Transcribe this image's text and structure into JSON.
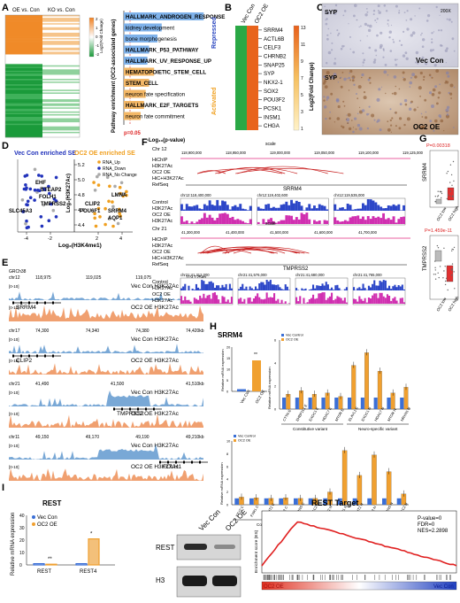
{
  "panels": {
    "a": "A",
    "b": "B",
    "c": "C",
    "d": "D",
    "e": "E",
    "f": "F",
    "g": "G",
    "h": "H",
    "i": "I"
  },
  "panel_a": {
    "col_labels": [
      "OE vs. Con",
      "KO vs. Con"
    ],
    "colorbar_label": "Log2(Fold Change)",
    "colorbar_ticks": [
      "2",
      "1",
      "0",
      "-1",
      "-2"
    ],
    "yaxis_label": "Pathway enrichment (OC2-associated genes)",
    "xlabel": "-Log₁₀(p-value)",
    "pvalue_note": "p=0.05",
    "group_repressed": "Repressed",
    "group_activated": "Activated",
    "pathways": [
      {
        "name": "HALLMARK_ANDROGEN_RESPONSE",
        "group": "repressed",
        "value": 0.95
      },
      {
        "name": "kidney development",
        "group": "repressed",
        "value": 0.45
      },
      {
        "name": "bone morphogenesis",
        "group": "repressed",
        "value": 0.4
      },
      {
        "name": "HALLMARK_P53_PATHWAY",
        "group": "repressed",
        "value": 0.3
      },
      {
        "name": "HALLMARK_UV_RESPONSE_UP",
        "group": "repressed",
        "value": 0.28
      },
      {
        "name": "HEMATOPOIETIC_STEM_CELL",
        "group": "activated",
        "value": 0.36
      },
      {
        "name": "STEM_CELL",
        "group": "activated",
        "value": 0.3
      },
      {
        "name": "neuron fate specification",
        "group": "activated",
        "value": 0.26
      },
      {
        "name": "HALLMARK_E2F_TARGETS",
        "group": "activated",
        "value": 0.24
      },
      {
        "name": "neuron fate commitment",
        "group": "activated",
        "value": 0.2
      }
    ]
  },
  "panel_b": {
    "col_labels": [
      "Vec Con",
      "OC2 OE"
    ],
    "genes": [
      "SRRM4",
      "ACTL6B",
      "CELF3",
      "CHRNB2",
      "SNAP25",
      "SYP",
      "NKX2-1",
      "SOX2",
      "POU3F2",
      "PCSK1",
      "INSM1",
      "CHGA"
    ],
    "colorbar_label": "Log2(Fold Change)",
    "colorbar_ticks": [
      "13",
      "11",
      "9",
      "7",
      "5",
      "3",
      "1"
    ]
  },
  "panel_c": {
    "stain": "SYP",
    "magnification": "200X",
    "top_label": "Vec Con",
    "bottom_label": "OC2 OE"
  },
  "panel_d": {
    "title_left": "Vec Con enriched SE",
    "title_right": "OC2 OE enriched SE",
    "legend": [
      "RNA_Up",
      "RNA_Down",
      "RNA_No Change"
    ],
    "legend_colors": [
      "#f0a020",
      "#2233bb",
      "#aaaaaa"
    ],
    "xlabel": "Log₂(H3K4me1)",
    "ylabel": "Log₂(H3K27Ac)",
    "xticks": [
      "-4",
      "-2",
      "2",
      "4"
    ],
    "yticks": [
      "5.2",
      "5.0",
      "4.8",
      "4.6",
      "4.4"
    ],
    "labels_left": [
      "EHF",
      "STEAP2",
      "FOLH1",
      "TMPRSS2",
      "SLC45A3"
    ],
    "labels_right": [
      "LMNA",
      "CLIP2",
      "POU6F1",
      "SRRM4",
      "AQP1"
    ]
  },
  "panel_e": {
    "genome": "GRCh38",
    "tracks": [
      {
        "chr": "chr12",
        "coords": [
          "118,975",
          "119,025",
          "119,075",
          "119,125kb"
        ],
        "gene": "SRRM4",
        "rows": [
          "Vec Con H3K27Ac",
          "OC2 OE H3K27Ac"
        ],
        "scale": "[0-10]"
      },
      {
        "chr": "chr17",
        "coords": [
          "74,300",
          "74,340",
          "74,380",
          "74,420kb"
        ],
        "gene": "CLIP2",
        "rows": [
          "Vec Con H3K27Ac",
          "OC2 OE H3K27Ac"
        ],
        "scale": "[0-10]"
      },
      {
        "chr": "chr21",
        "coords": [
          "41,490",
          "41,500",
          "41,510kb"
        ],
        "gene": "TMPRSS2",
        "rows": [
          "Vec Con H3K27Ac",
          "OC2 OE H3K27Ac"
        ],
        "scale": "[0-10]"
      },
      {
        "chr": "chr11",
        "coords": [
          "49,150",
          "49,170",
          "49,190",
          "49,210kb"
        ],
        "gene": "FOLH1",
        "rows": [
          "Vec Con H3K27Ac",
          "OC2 OE H3K27Ac"
        ],
        "scale": "[0-10]"
      }
    ]
  },
  "panel_f": {
    "top": {
      "chr": "Chr 12",
      "coords": [
        "118,900,000",
        "118,950,000",
        "119,000,000",
        "119,050,000",
        "119,100,000",
        "119,125,000"
      ],
      "gene": "SRRM4",
      "zoom": [
        "chr12:118,400,000",
        "chr12:119,402,600",
        "chr12:119,535,000"
      ]
    },
    "bottom": {
      "chr": "Chr 21",
      "coords": [
        "41,300,000",
        "41,400,000",
        "41,500,000",
        "41,600,000",
        "41,700,000"
      ],
      "gene": "TMPRSS2",
      "zoom": [
        "chr21:41,312,000",
        "chr21:41,576,000",
        "chr21:41,680,000",
        "chr21:41,765,000"
      ]
    },
    "rows": [
      "HiChIP",
      "H3K27Ac",
      "OC2 OE",
      "HiC+H3K27Ac",
      "RefSeq"
    ],
    "coverage_rows": [
      "Control",
      "H3K27Ac",
      "OC2 OE",
      "H3K27Ac"
    ],
    "scale": "scale"
  },
  "panel_g": {
    "top_gene": "SRRM4",
    "top_p": "P=0.00318",
    "bottom_gene": "TMPRSS2",
    "bottom_p": "P=1.459e-11",
    "xcats": [
      "OC2 low",
      "OC2 high"
    ]
  },
  "panel_h": {
    "title": "SRRM4",
    "ylabel": "Relative mRNA expression",
    "legend": [
      "Vec Control",
      "OC2 OE"
    ],
    "bar1": {
      "cats": [
        "Vec Con",
        "OC2 OE"
      ],
      "values": [
        1.0,
        14.0
      ],
      "ylim": [
        0,
        20
      ],
      "yticks": [
        "0",
        "5",
        "10",
        "15",
        "20"
      ],
      "sig": "**"
    },
    "chart2": {
      "groups": [
        {
          "label": "Constitutive variant",
          "cats": [
            "CTTN E",
            "EHBP1L1 E",
            "EXOC1 E",
            "HDAC7 E",
            "MTOR E"
          ]
        },
        {
          "label": "Neuro-specific variant",
          "cats": [
            "ELAVL1 E",
            "EXOC1 N",
            "HDAC7 N",
            "MTOR N",
            "NRXN1 N"
          ]
        }
      ],
      "values_vec": [
        1,
        1,
        1,
        1,
        1,
        1,
        1,
        1,
        1,
        1
      ],
      "values_oe": [
        1.3,
        1.6,
        1.3,
        1.4,
        1.1,
        3.8,
        4.9,
        3.3,
        1.4,
        1.9
      ],
      "ylim": [
        0,
        6
      ],
      "yticks": [
        "0",
        "2",
        "4",
        "6"
      ]
    },
    "chart3": {
      "groups": [
        {
          "label": "Constitutive variant",
          "cats": [
            "FTY2 C",
            "FXR1 C",
            "ARNT2 C",
            "ATL2 C",
            "CARNS C",
            "ERCC2 C"
          ]
        },
        {
          "label": "Neuro-specific variant",
          "cats": [
            "FTY2 N",
            "FXR1 N",
            "ARNT2 N",
            "ATL2 N",
            "CARNS N",
            "ERCC2 N"
          ]
        }
      ],
      "values_vec": [
        1,
        1,
        1,
        1,
        1,
        1,
        1,
        1,
        1,
        1,
        1,
        1
      ],
      "values_oe": [
        1.2,
        1.1,
        1.0,
        1.1,
        1.0,
        1.0,
        2.0,
        8.5,
        4.6,
        7.8,
        5.2,
        1.7
      ],
      "ylim": [
        0,
        10
      ],
      "yticks": [
        "0",
        "2",
        "4",
        "6",
        "8",
        "10"
      ]
    }
  },
  "panel_i": {
    "title": "REST",
    "ylabel": "Relative mRNA expression",
    "legend": [
      "Vec Con",
      "OC2 OE"
    ],
    "legend_colors": [
      "#3b6fd6",
      "#f0a030"
    ],
    "cats": [
      "REST",
      "REST4"
    ],
    "values_vec": [
      1.0,
      1.0
    ],
    "values_oe": [
      0.6,
      21.0
    ],
    "ylim": [
      0,
      40
    ],
    "yticks": [
      "0",
      "10",
      "20",
      "30",
      "40"
    ],
    "sig": [
      "**",
      "*"
    ],
    "western_cols": [
      "Vec Con",
      "OC2 OE"
    ],
    "western_rows": [
      "REST",
      "H3"
    ],
    "gsea": {
      "title": "REST Target",
      "stats": [
        "P-value=0",
        "FDR=0",
        "NES=2.2898"
      ],
      "ylabel": "Enrichment score (ES)",
      "left": "OC2 OE",
      "right": "Vec Con"
    }
  }
}
